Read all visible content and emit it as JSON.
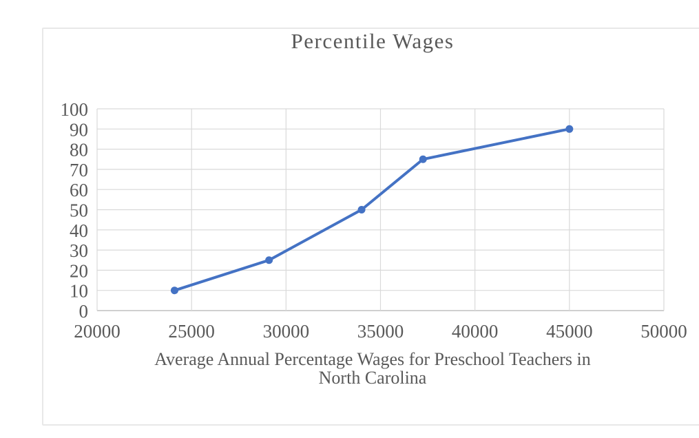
{
  "chart_data": {
    "type": "line",
    "title": "Percentile Wages",
    "xlabel": "Average Annual Percentage Wages for Preschool Teachers in North Carolina",
    "xlabel_lines": [
      "Average Annual Percentage Wages for Preschool Teachers in",
      "North Carolina"
    ],
    "ylabel": "",
    "series": [
      {
        "name": "Percentile Wages",
        "points": [
          {
            "x": 24100,
            "y": 10
          },
          {
            "x": 29100,
            "y": 25
          },
          {
            "x": 34000,
            "y": 50
          },
          {
            "x": 37250,
            "y": 75
          },
          {
            "x": 45000,
            "y": 90
          }
        ]
      }
    ],
    "xlim": [
      20000,
      50000
    ],
    "ylim": [
      0,
      100
    ],
    "x_ticks": [
      "20000",
      "25000",
      "30000",
      "35000",
      "40000",
      "45000",
      "50000"
    ],
    "y_ticks": [
      "0",
      "10",
      "20",
      "30",
      "40",
      "50",
      "60",
      "70",
      "80",
      "90",
      "100"
    ],
    "grid": true,
    "legend": "none",
    "marker": "circle",
    "colors": {
      "series": "#4472C4",
      "gridline": "#D9D9D9",
      "axis_line": "#BFBFBF",
      "text": "#595959",
      "chart_border": "#E8E8E8",
      "background": "#FFFFFF"
    }
  }
}
